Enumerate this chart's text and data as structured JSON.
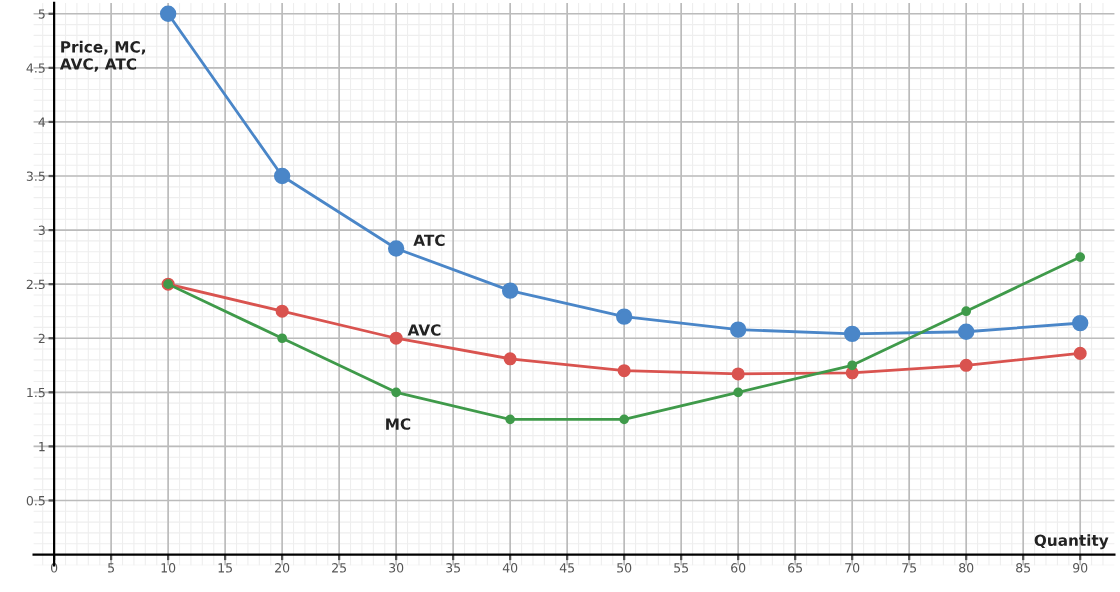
{
  "chart_data": {
    "type": "line",
    "xlabel": "Quantity",
    "ylabel": "Price, MC,\nAVC, ATC",
    "x": [
      10,
      20,
      30,
      40,
      50,
      60,
      70,
      80,
      90
    ],
    "series": [
      {
        "name": "ATC",
        "color": "#4a86c8",
        "values": [
          5,
          3.5,
          2.83,
          2.44,
          2.2,
          2.08,
          2.04,
          2.06,
          2.14
        ]
      },
      {
        "name": "AVC",
        "color": "#d9534f",
        "values": [
          2.5,
          2.25,
          2,
          1.81,
          1.7,
          1.67,
          1.68,
          1.75,
          1.86
        ]
      },
      {
        "name": "MC",
        "color": "#3f9a4a",
        "values": [
          2.5,
          2,
          1.5,
          1.25,
          1.25,
          1.5,
          1.75,
          2.25,
          2.75
        ]
      }
    ],
    "xlim": [
      -1.8,
      93
    ],
    "ylim": [
      -0.1,
      5.1
    ],
    "xticks": [
      0,
      5,
      10,
      15,
      20,
      25,
      30,
      35,
      40,
      45,
      50,
      55,
      60,
      65,
      70,
      75,
      80,
      85,
      90
    ],
    "yticks": [
      0.5,
      1,
      1.5,
      2,
      2.5,
      3,
      3.5,
      4,
      4.5,
      5
    ],
    "grid": true,
    "marker": "circle",
    "line_style": "solid",
    "legend": false
  }
}
